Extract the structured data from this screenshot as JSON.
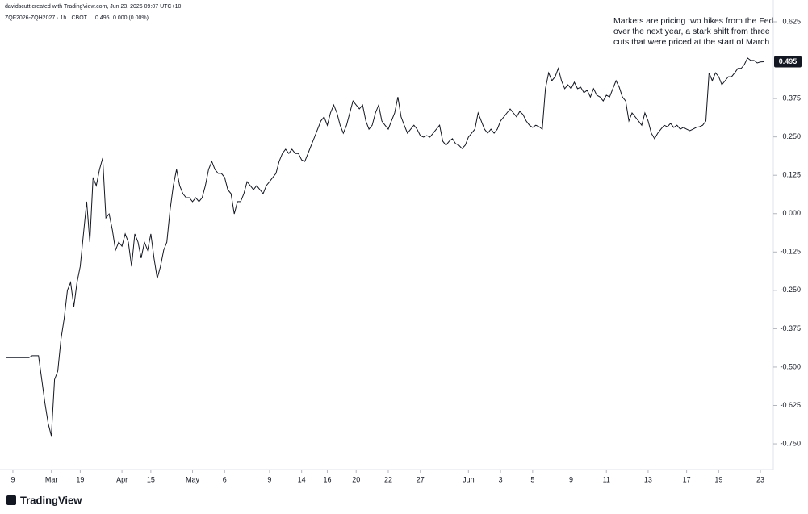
{
  "chart_data": {
    "type": "line",
    "attribution": "davidscutt created with TradingView.com, Jun 23, 2026 09:07 UTC+10",
    "symbol": "ZQF2026-ZQH2027 · 1h · CBOT",
    "last": "0.495",
    "change": "0.000 (0.00%)",
    "annotation": [
      "Markets are pricing two hikes from the Fed",
      "over the next year, a stark shift from three",
      "cuts that were priced at the start of March"
    ],
    "logo": "TradingView",
    "color": "#131722",
    "grid": false,
    "values": [
      -0.469,
      -0.469,
      -0.469,
      -0.469,
      -0.469,
      -0.469,
      -0.469,
      -0.469,
      -0.463,
      -0.463,
      -0.463,
      -0.54,
      -0.618,
      -0.684,
      -0.724,
      -0.54,
      -0.513,
      -0.408,
      -0.342,
      -0.25,
      -0.224,
      -0.303,
      -0.224,
      -0.172,
      -0.066,
      0.039,
      -0.093,
      0.118,
      0.091,
      0.144,
      0.181,
      -0.014,
      -0.001,
      -0.053,
      -0.119,
      -0.093,
      -0.106,
      -0.066,
      -0.093,
      -0.172,
      -0.066,
      -0.093,
      -0.145,
      -0.093,
      -0.119,
      -0.066,
      -0.145,
      -0.211,
      -0.172,
      -0.119,
      -0.093,
      0.012,
      0.091,
      0.144,
      0.091,
      0.065,
      0.052,
      0.052,
      0.039,
      0.052,
      0.039,
      0.052,
      0.091,
      0.144,
      0.17,
      0.144,
      0.131,
      0.131,
      0.118,
      0.078,
      0.065,
      -0.001,
      0.039,
      0.039,
      0.065,
      0.104,
      0.091,
      0.078,
      0.091,
      0.078,
      0.065,
      0.091,
      0.104,
      0.118,
      0.131,
      0.17,
      0.196,
      0.21,
      0.196,
      0.21,
      0.196,
      0.196,
      0.175,
      0.17,
      0.196,
      0.223,
      0.249,
      0.275,
      0.302,
      0.315,
      0.288,
      0.328,
      0.354,
      0.328,
      0.288,
      0.262,
      0.288,
      0.328,
      0.367,
      0.354,
      0.341,
      0.354,
      0.302,
      0.275,
      0.288,
      0.328,
      0.354,
      0.302,
      0.288,
      0.275,
      0.302,
      0.328,
      0.38,
      0.315,
      0.288,
      0.262,
      0.275,
      0.288,
      0.275,
      0.254,
      0.249,
      0.254,
      0.249,
      0.262,
      0.275,
      0.288,
      0.236,
      0.223,
      0.236,
      0.244,
      0.228,
      0.223,
      0.212,
      0.223,
      0.249,
      0.262,
      0.275,
      0.328,
      0.302,
      0.275,
      0.262,
      0.275,
      0.262,
      0.275,
      0.302,
      0.315,
      0.328,
      0.341,
      0.328,
      0.315,
      0.333,
      0.323,
      0.302,
      0.288,
      0.281,
      0.288,
      0.283,
      0.275,
      0.407,
      0.459,
      0.433,
      0.446,
      0.473,
      0.433,
      0.407,
      0.42,
      0.407,
      0.428,
      0.407,
      0.412,
      0.394,
      0.402,
      0.38,
      0.407,
      0.386,
      0.38,
      0.367,
      0.386,
      0.38,
      0.407,
      0.433,
      0.412,
      0.38,
      0.367,
      0.302,
      0.328,
      0.315,
      0.302,
      0.288,
      0.328,
      0.302,
      0.262,
      0.244,
      0.262,
      0.275,
      0.288,
      0.283,
      0.294,
      0.281,
      0.288,
      0.275,
      0.281,
      0.275,
      0.27,
      0.275,
      0.281,
      0.283,
      0.288,
      0.302,
      0.459,
      0.433,
      0.459,
      0.446,
      0.42,
      0.433,
      0.446,
      0.446,
      0.459,
      0.473,
      0.473,
      0.486,
      0.507,
      0.499,
      0.499,
      0.491,
      0.494,
      0.495
    ],
    "xlim": [
      0,
      236
    ],
    "xticks": [
      {
        "value": 2,
        "label": "9"
      },
      {
        "value": 14,
        "label": "Mar"
      },
      {
        "value": 23,
        "label": "19"
      },
      {
        "value": 36,
        "label": "Apr"
      },
      {
        "value": 45,
        "label": "15"
      },
      {
        "value": 58,
        "label": "May"
      },
      {
        "value": 68,
        "label": "6"
      },
      {
        "value": 82,
        "label": "9"
      },
      {
        "value": 92,
        "label": "14"
      },
      {
        "value": 100,
        "label": "16"
      },
      {
        "value": 109,
        "label": "20"
      },
      {
        "value": 119,
        "label": "22"
      },
      {
        "value": 129,
        "label": "27"
      },
      {
        "value": 144,
        "label": "Jun"
      },
      {
        "value": 154,
        "label": "3"
      },
      {
        "value": 164,
        "label": "5"
      },
      {
        "value": 176,
        "label": "9"
      },
      {
        "value": 187,
        "label": "11"
      },
      {
        "value": 200,
        "label": "13"
      },
      {
        "value": 212,
        "label": "17"
      },
      {
        "value": 222,
        "label": "19"
      },
      {
        "value": 235,
        "label": "23"
      }
    ],
    "ylim": [
      -0.834,
      0.696
    ],
    "yticks": [
      0.625,
      0.375,
      {
        "value": 0.25,
        "label": "0.250"
      },
      0.125,
      {
        "value": 0,
        "label": "0.000"
      },
      -0.125,
      {
        "value": -0.25,
        "label": "-0.250"
      },
      -0.375,
      {
        "value": -0.5,
        "label": "-0.500"
      },
      -0.625,
      {
        "value": -0.75,
        "label": "-0.750"
      }
    ]
  }
}
